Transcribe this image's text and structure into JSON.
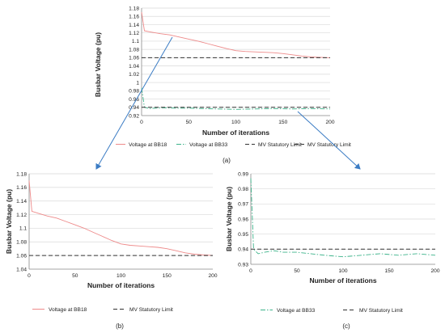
{
  "colors": {
    "bb18": "#ee8a8a",
    "bb33": "#3cb38a",
    "limit": "#333333",
    "grid": "#d9d9d9",
    "axis": "#888888",
    "arrow": "#3b7cc4"
  },
  "chart_data": [
    {
      "panel": "a",
      "type": "line",
      "caption": "(a)",
      "xlabel": "Number of iterations",
      "ylabel": "Busbar Voltage (pu)",
      "xlim": [
        0,
        200
      ],
      "ylim": [
        0.92,
        1.18
      ],
      "xticks": [
        0,
        50,
        100,
        150,
        200
      ],
      "yticks": [
        0.92,
        0.94,
        0.96,
        0.98,
        1,
        1.02,
        1.04,
        1.06,
        1.08,
        1.1,
        1.12,
        1.14,
        1.16,
        1.18
      ],
      "xtick_labels": [
        "0",
        "50",
        "100",
        "150",
        "200"
      ],
      "ytick_labels": [
        "0.92",
        "0.94",
        "0.96",
        "0.98",
        "1",
        "1.02",
        "1.04",
        "1.06",
        "1.08",
        "1.1",
        "1.12",
        "1.14",
        "1.16",
        "1.18"
      ],
      "grid": true,
      "legend": [
        "Voltage at BB18",
        "Voltage at BB33",
        "MV Statutory Limit",
        "MV Statutory Limit"
      ],
      "series": [
        {
          "name": "Voltage at BB18",
          "style": "solid",
          "color": "#ee8a8a",
          "x": [
            0,
            3,
            10,
            20,
            30,
            40,
            50,
            60,
            70,
            80,
            90,
            100,
            110,
            120,
            130,
            140,
            150,
            160,
            170,
            180,
            190,
            200
          ],
          "y": [
            1.17,
            1.125,
            1.122,
            1.118,
            1.115,
            1.11,
            1.105,
            1.1,
            1.094,
            1.088,
            1.082,
            1.077,
            1.075,
            1.074,
            1.073,
            1.072,
            1.07,
            1.067,
            1.064,
            1.062,
            1.061,
            1.06
          ]
        },
        {
          "name": "Voltage at BB33",
          "style": "dashdot",
          "color": "#3cb38a",
          "x": [
            0,
            3,
            8,
            15,
            25,
            35,
            50,
            65,
            80,
            100,
            120,
            140,
            160,
            180,
            200
          ],
          "y": [
            0.987,
            0.94,
            0.937,
            0.938,
            0.939,
            0.938,
            0.938,
            0.937,
            0.936,
            0.935,
            0.936,
            0.937,
            0.936,
            0.937,
            0.936
          ]
        },
        {
          "name": "MV Statutory Limit",
          "style": "dashed",
          "color": "#333333",
          "x": [
            0,
            200
          ],
          "y": [
            1.06,
            1.06
          ]
        },
        {
          "name": "MV Statutory Limit",
          "style": "dashed",
          "color": "#333333",
          "x": [
            0,
            200
          ],
          "y": [
            0.94,
            0.94
          ]
        }
      ]
    },
    {
      "panel": "b",
      "type": "line",
      "caption": "(b)",
      "xlabel": "Number of iterations",
      "ylabel": "Busbar Voltage (pu)",
      "xlim": [
        0,
        200
      ],
      "ylim": [
        1.04,
        1.18
      ],
      "xticks": [
        0,
        50,
        100,
        150,
        200
      ],
      "yticks": [
        1.04,
        1.06,
        1.08,
        1.1,
        1.12,
        1.14,
        1.16,
        1.18
      ],
      "xtick_labels": [
        "0",
        "50",
        "100",
        "150",
        "200"
      ],
      "ytick_labels": [
        "1.04",
        "1.06",
        "1.08",
        "1.1",
        "1.12",
        "1.14",
        "1.16",
        "1.18"
      ],
      "grid": true,
      "legend": [
        "Voltage at BB18",
        "MV Statutory Limit"
      ],
      "series": [
        {
          "name": "Voltage at BB18",
          "style": "solid",
          "color": "#ee8a8a",
          "x": [
            0,
            3,
            10,
            20,
            30,
            40,
            50,
            60,
            70,
            80,
            90,
            100,
            110,
            120,
            130,
            140,
            150,
            160,
            170,
            180,
            190,
            200
          ],
          "y": [
            1.17,
            1.125,
            1.122,
            1.118,
            1.115,
            1.11,
            1.105,
            1.1,
            1.094,
            1.088,
            1.082,
            1.077,
            1.075,
            1.074,
            1.073,
            1.072,
            1.07,
            1.067,
            1.064,
            1.062,
            1.061,
            1.06
          ]
        },
        {
          "name": "MV Statutory Limit",
          "style": "dashed",
          "color": "#333333",
          "x": [
            0,
            200
          ],
          "y": [
            1.06,
            1.06
          ]
        }
      ]
    },
    {
      "panel": "c",
      "type": "line",
      "caption": "(c)",
      "xlabel": "Number of iterations",
      "ylabel": "Busbar Voltage (pu)",
      "xlim": [
        0,
        200
      ],
      "ylim": [
        0.93,
        0.99
      ],
      "xticks": [
        0,
        50,
        100,
        150,
        200
      ],
      "yticks": [
        0.93,
        0.94,
        0.95,
        0.96,
        0.97,
        0.98,
        0.99
      ],
      "xtick_labels": [
        "0",
        "50",
        "100",
        "150",
        "200"
      ],
      "ytick_labels": [
        "0.93",
        "0.94",
        "0.95",
        "0.96",
        "0.97",
        "0.98",
        "0.99"
      ],
      "grid": true,
      "legend": [
        "Voltage at BB33",
        "MV Statutory Limit"
      ],
      "series": [
        {
          "name": "Voltage at BB33",
          "style": "dashdot",
          "color": "#3cb38a",
          "x": [
            0,
            3,
            8,
            15,
            25,
            35,
            50,
            65,
            80,
            100,
            120,
            140,
            160,
            180,
            200
          ],
          "y": [
            0.987,
            0.94,
            0.937,
            0.938,
            0.939,
            0.938,
            0.938,
            0.937,
            0.936,
            0.935,
            0.936,
            0.937,
            0.936,
            0.937,
            0.936
          ]
        },
        {
          "name": "MV Statutory Limit",
          "style": "dashed",
          "color": "#333333",
          "x": [
            0,
            200
          ],
          "y": [
            0.94,
            0.94
          ]
        }
      ]
    }
  ]
}
